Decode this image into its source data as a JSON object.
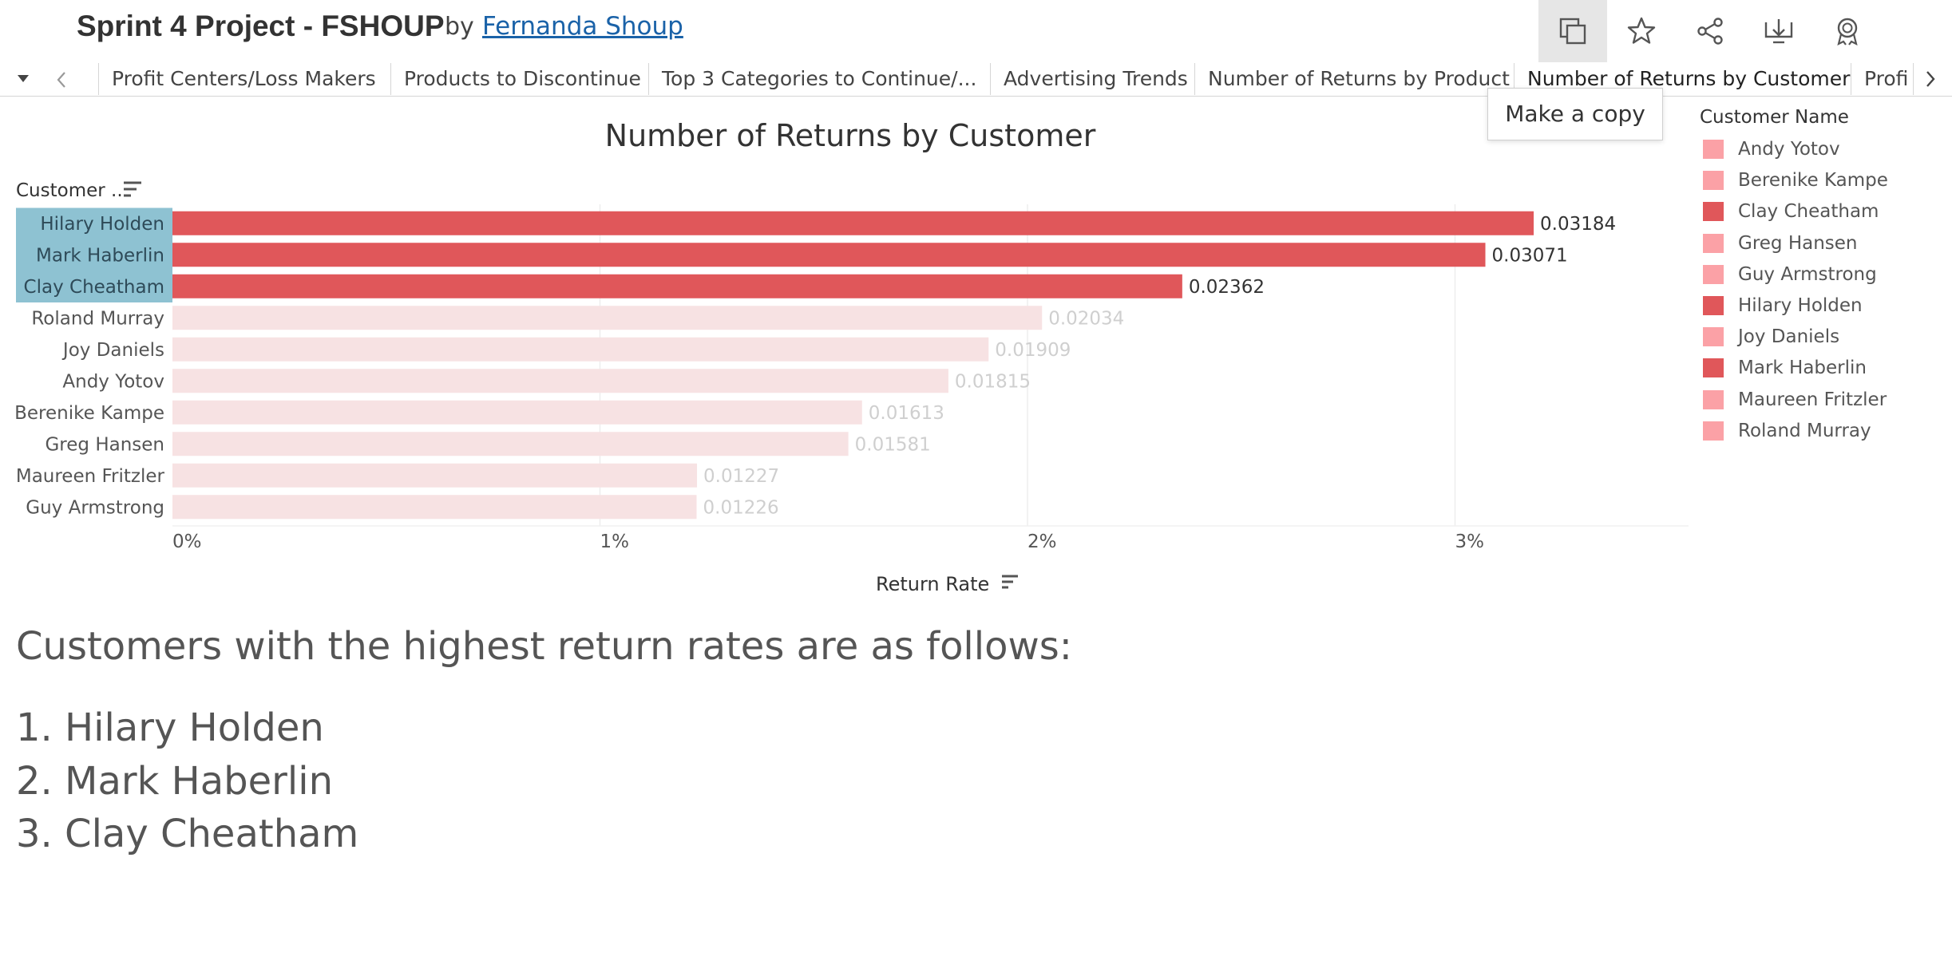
{
  "header": {
    "title": "Sprint 4 Project - FSHOUP",
    "by_label": "by",
    "author": "Fernanda Shoup",
    "buttons": [
      {
        "icon": "copy-icon"
      },
      {
        "icon": "star-icon"
      },
      {
        "icon": "share-icon"
      },
      {
        "icon": "download-icon"
      },
      {
        "icon": "award-icon"
      }
    ]
  },
  "tabs": [
    {
      "label": "Profit Centers/Loss Makers"
    },
    {
      "label": "Products to Discontinue"
    },
    {
      "label": "Top 3 Categories to Continue/..."
    },
    {
      "label": "Advertising Trends"
    },
    {
      "label": "Number of Returns by Product"
    },
    {
      "label": "Number of Returns by Customer",
      "active": true
    },
    {
      "label": "Profi"
    }
  ],
  "tooltip": "Make a copy",
  "chart_data": {
    "type": "bar",
    "orientation": "horizontal",
    "title": "Number of Returns by Customer",
    "row_header": "Customer ..",
    "xlabel": "Return Rate",
    "ticks": [
      "0%",
      "1%",
      "2%",
      "3%"
    ],
    "xlim": [
      0,
      0.0355
    ],
    "grid": true,
    "categories": [
      "Hilary Holden",
      "Mark Haberlin",
      "Clay Cheatham",
      "Roland Murray",
      "Joy Daniels",
      "Andy Yotov",
      "Berenike Kampe",
      "Greg Hansen",
      "Maureen Fritzler",
      "Guy Armstrong"
    ],
    "values": [
      0.03184,
      0.03071,
      0.02362,
      0.02034,
      0.01909,
      0.01815,
      0.01613,
      0.01581,
      0.01227,
      0.01226
    ],
    "value_labels": [
      "0.03184",
      "0.03071",
      "0.02362",
      "0.02034",
      "0.01909",
      "0.01815",
      "0.01613",
      "0.01581",
      "0.01227",
      "0.01226"
    ],
    "highlighted": [
      true,
      true,
      true,
      false,
      false,
      false,
      false,
      false,
      false,
      false
    ],
    "colors": {
      "highlight": "#e0575a",
      "faded": "#f7e2e3",
      "selection_bg": "#8ec2d2",
      "faded_label": "#cfcfcf"
    }
  },
  "legend": {
    "title": "Customer Name",
    "items": [
      {
        "label": "Andy Yotov",
        "color": "#fba1a6"
      },
      {
        "label": "Berenike Kampe",
        "color": "#fba1a6"
      },
      {
        "label": "Clay Cheatham",
        "color": "#e0575a"
      },
      {
        "label": "Greg Hansen",
        "color": "#fba1a6"
      },
      {
        "label": "Guy Armstrong",
        "color": "#fba1a6"
      },
      {
        "label": "Hilary Holden",
        "color": "#e0575a"
      },
      {
        "label": "Joy Daniels",
        "color": "#fba1a6"
      },
      {
        "label": "Mark Haberlin",
        "color": "#e0575a"
      },
      {
        "label": "Maureen Fritzler",
        "color": "#fba1a6"
      },
      {
        "label": "Roland Murray",
        "color": "#fba1a6"
      }
    ]
  },
  "summary": {
    "heading": "Customers with the highest return rates are as follows:",
    "items": [
      "1. Hilary Holden",
      "2. Mark Haberlin",
      "3. Clay Cheatham"
    ]
  }
}
